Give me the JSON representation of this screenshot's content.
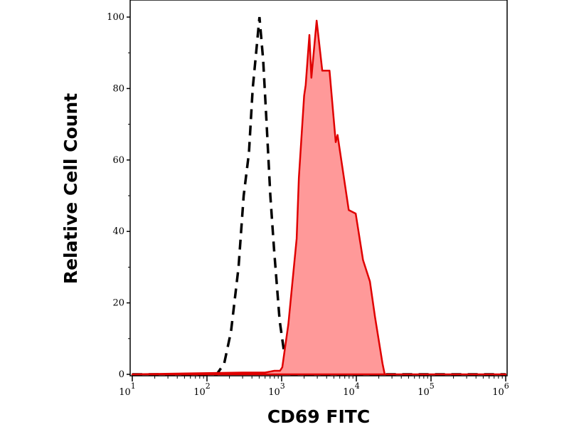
{
  "chart_data": {
    "type": "area",
    "title": "",
    "xlabel": "CD69 FITC",
    "ylabel": "Relative Cell Count",
    "xscale": "log",
    "xlim": [
      10,
      1000000
    ],
    "ylim": [
      0,
      100
    ],
    "x_ticks": [
      {
        "base": "10",
        "exp": "1"
      },
      {
        "base": "10",
        "exp": "2"
      },
      {
        "base": "10",
        "exp": "3"
      },
      {
        "base": "10",
        "exp": "4"
      },
      {
        "base": "10",
        "exp": "5"
      },
      {
        "base": "10",
        "exp": "6"
      }
    ],
    "y_ticks": [
      "0",
      "20",
      "40",
      "60",
      "80",
      "100"
    ],
    "grid": false,
    "series": [
      {
        "style": "dashed-outline",
        "color": "#000000",
        "x": [
          10,
          120,
          135,
          170,
          210,
          265,
          310,
          365,
          410,
          455,
          505,
          565,
          630,
          705,
          790,
          940,
          1100,
          1350,
          1000000
        ],
        "y": [
          0,
          0,
          0,
          3,
          12,
          30,
          50,
          62,
          80,
          90,
          100,
          88,
          70,
          50,
          35,
          15,
          5,
          0,
          0
        ]
      },
      {
        "style": "filled",
        "color": "#e00000",
        "fill": "#ff9999",
        "x": [
          10,
          300,
          600,
          800,
          950,
          1020,
          1230,
          1590,
          1700,
          2000,
          2100,
          2350,
          2500,
          2940,
          3500,
          4370,
          5300,
          5600,
          7900,
          9800,
          12300,
          15200,
          17800,
          22400,
          24000,
          1000000
        ],
        "y": [
          0,
          0.5,
          0.5,
          1,
          1,
          2,
          14,
          38,
          55,
          78,
          81,
          95,
          83,
          99,
          85,
          85,
          65,
          67,
          46,
          45,
          32,
          26,
          16,
          3,
          0,
          0
        ]
      }
    ]
  }
}
